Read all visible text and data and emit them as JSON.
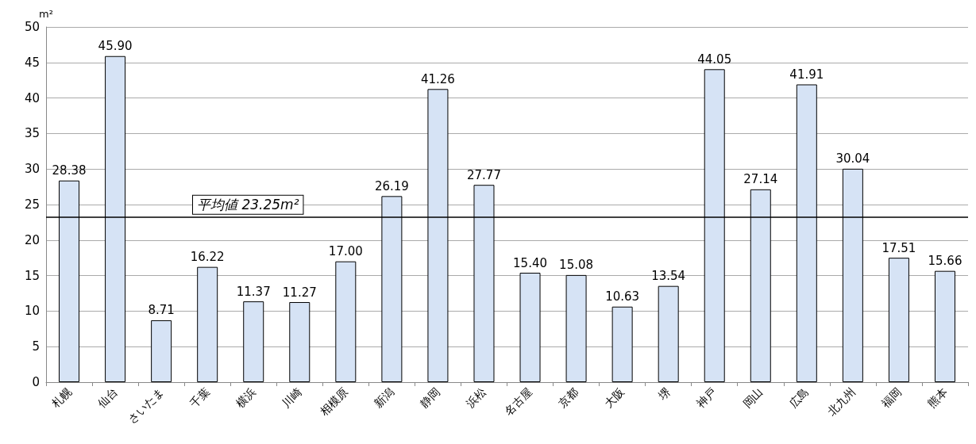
{
  "chart_data": {
    "type": "bar",
    "ylabel": "m²",
    "categories": [
      "札幌",
      "仙台",
      "さいたま",
      "千葉",
      "横浜",
      "川崎",
      "相模原",
      "新潟",
      "静岡",
      "浜松",
      "名古屋",
      "京都",
      "大阪",
      "堺",
      "神戸",
      "岡山",
      "広島",
      "北九州",
      "福岡",
      "熊本"
    ],
    "values": [
      28.38,
      45.9,
      8.71,
      16.22,
      11.37,
      11.27,
      17.0,
      26.19,
      41.26,
      27.77,
      15.4,
      15.08,
      10.63,
      13.54,
      44.05,
      27.14,
      41.91,
      30.04,
      17.51,
      15.66
    ],
    "value_labels": [
      "28.38",
      "45.90",
      "8.71",
      "16.22",
      "11.37",
      "11.27",
      "17.00",
      "26.19",
      "41.26",
      "27.77",
      "15.40",
      "15.08",
      "10.63",
      "13.54",
      "44.05",
      "27.14",
      "41.91",
      "30.04",
      "17.51",
      "15.66"
    ],
    "color": "#d6e3f5",
    "ylim": [
      0,
      50
    ],
    "yticks": [
      0,
      5,
      10,
      15,
      20,
      25,
      30,
      35,
      40,
      45,
      50
    ],
    "grid": "y",
    "ref_lines": [
      {
        "axis": "y",
        "value": 23.25,
        "label": "平均値 23.25m²",
        "color": "#000000"
      }
    ]
  }
}
